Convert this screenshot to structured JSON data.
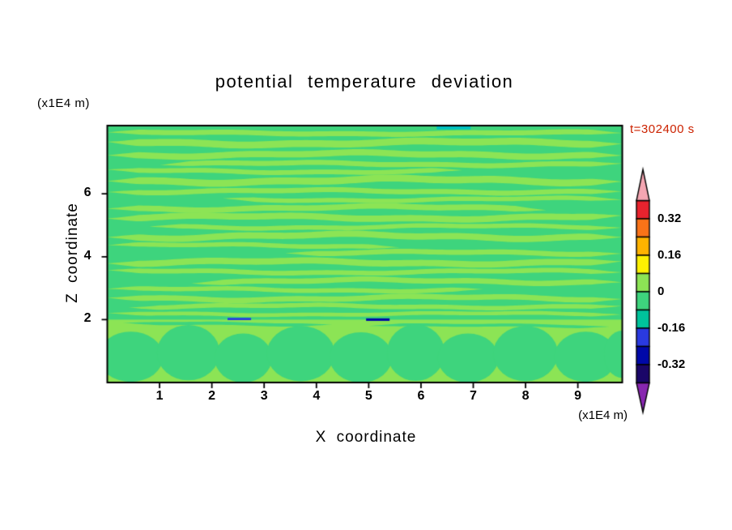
{
  "chart_data": {
    "type": "heatmap",
    "subtype": "filled-contour",
    "title": "potential temperature deviation",
    "xlabel": "X coordinate",
    "ylabel": "Z coordinate",
    "x_unit": "(x1E4 m)",
    "z_unit": "(x1E4 m)",
    "time_label": "t=302400 s",
    "time_color": "#cc2200",
    "frame_color": "#000000",
    "background_color": "#ffffff",
    "xlim": [
      0,
      9.85
    ],
    "zlim": [
      0,
      8.17
    ],
    "x_ticks": [
      1,
      2,
      3,
      4,
      5,
      6,
      7,
      8,
      9
    ],
    "z_ticks": [
      2,
      4,
      6
    ],
    "contour_interval": 0.08,
    "colorbar": {
      "labels": [
        "0.32",
        "0.16",
        "0",
        "-0.16",
        "-0.32"
      ],
      "levels": [
        0.4,
        0.32,
        0.24,
        0.16,
        0.08,
        0,
        -0.08,
        -0.16,
        -0.24,
        -0.32,
        -0.4
      ],
      "segment_colors": [
        "#e8232e",
        "#f97318",
        "#ffb300",
        "#fdf002",
        "#8ce455",
        "#3ed47d",
        "#00c39b",
        "#2a3ae0",
        "#0008a8",
        "#1a0668"
      ],
      "over_arrow_color": "#f4a6b2",
      "under_arrow_color": "#8826b0"
    },
    "field": {
      "background_color": "#3ed47d",
      "stripe_color": "#8ce455",
      "lower_band": {
        "z_top": 2.0
      },
      "stripes": [
        {
          "z": 7.93,
          "h": 0.16,
          "x0": 0,
          "x1": 9.85,
          "amp": 0.03,
          "ph": 0.5
        },
        {
          "z": 7.62,
          "h": 0.22,
          "x0": 0,
          "x1": 9.85,
          "amp": 0.05,
          "ph": 2.1
        },
        {
          "z": 7.25,
          "h": 0.2,
          "x0": 0,
          "x1": 9.85,
          "amp": 0.05,
          "ph": 3.8
        },
        {
          "z": 6.95,
          "h": 0.16,
          "x0": 1.0,
          "x1": 9.85,
          "amp": 0.04,
          "ph": 5.0
        },
        {
          "z": 6.72,
          "h": 0.15,
          "x0": 0,
          "x1": 6.8,
          "amp": 0.04,
          "ph": 1.3
        },
        {
          "z": 6.42,
          "h": 0.22,
          "x0": 0,
          "x1": 9.85,
          "amp": 0.06,
          "ph": 2.9
        },
        {
          "z": 6.08,
          "h": 0.16,
          "x0": 0,
          "x1": 9.85,
          "amp": 0.04,
          "ph": 4.6
        },
        {
          "z": 5.82,
          "h": 0.14,
          "x0": 2.2,
          "x1": 9.85,
          "amp": 0.04,
          "ph": 0.8
        },
        {
          "z": 5.55,
          "h": 0.18,
          "x0": 0,
          "x1": 8.4,
          "amp": 0.05,
          "ph": 3.3
        },
        {
          "z": 5.25,
          "h": 0.2,
          "x0": 0,
          "x1": 9.85,
          "amp": 0.05,
          "ph": 5.7
        },
        {
          "z": 4.95,
          "h": 0.14,
          "x0": 0.8,
          "x1": 9.85,
          "amp": 0.04,
          "ph": 1.9
        },
        {
          "z": 4.65,
          "h": 0.2,
          "x0": 0,
          "x1": 9.85,
          "amp": 0.06,
          "ph": 4.1
        },
        {
          "z": 4.35,
          "h": 0.14,
          "x0": 0,
          "x1": 5.6,
          "amp": 0.04,
          "ph": 0.2
        },
        {
          "z": 4.12,
          "h": 0.16,
          "x0": 3.4,
          "x1": 9.85,
          "amp": 0.04,
          "ph": 2.6
        },
        {
          "z": 3.82,
          "h": 0.2,
          "x0": 0,
          "x1": 9.85,
          "amp": 0.05,
          "ph": 5.2
        },
        {
          "z": 3.52,
          "h": 0.15,
          "x0": 0,
          "x1": 9.85,
          "amp": 0.04,
          "ph": 1.1
        },
        {
          "z": 3.22,
          "h": 0.17,
          "x0": 1.6,
          "x1": 9.85,
          "amp": 0.05,
          "ph": 3.6
        },
        {
          "z": 2.95,
          "h": 0.14,
          "x0": 0,
          "x1": 7.2,
          "amp": 0.04,
          "ph": 0.4
        },
        {
          "z": 2.68,
          "h": 0.17,
          "x0": 0,
          "x1": 9.85,
          "amp": 0.05,
          "ph": 2.4
        },
        {
          "z": 2.42,
          "h": 0.14,
          "x0": 0.4,
          "x1": 9.85,
          "amp": 0.04,
          "ph": 4.9
        },
        {
          "z": 2.18,
          "h": 0.12,
          "x0": 0,
          "x1": 9.85,
          "amp": 0.03,
          "ph": 1.7
        }
      ],
      "filaments": [
        {
          "z": 1.86,
          "h": 0.1,
          "x0": 0.3,
          "x1": 4.3,
          "amp": 0.03,
          "ph": 0.9
        },
        {
          "z": 1.8,
          "h": 0.09,
          "x0": 5.0,
          "x1": 9.6,
          "amp": 0.03,
          "ph": 2.2
        }
      ],
      "blobs": [
        {
          "x": 0.45,
          "z": 0.82,
          "rx": 0.62,
          "rz": 0.8
        },
        {
          "x": 1.55,
          "z": 0.95,
          "rx": 0.6,
          "rz": 0.88
        },
        {
          "x": 2.6,
          "z": 0.78,
          "rx": 0.55,
          "rz": 0.78
        },
        {
          "x": 3.7,
          "z": 0.92,
          "rx": 0.65,
          "rz": 0.88
        },
        {
          "x": 4.85,
          "z": 0.8,
          "rx": 0.6,
          "rz": 0.8
        },
        {
          "x": 5.9,
          "z": 0.95,
          "rx": 0.55,
          "rz": 0.9
        },
        {
          "x": 6.9,
          "z": 0.78,
          "rx": 0.58,
          "rz": 0.78
        },
        {
          "x": 8.0,
          "z": 0.92,
          "rx": 0.62,
          "rz": 0.88
        },
        {
          "x": 9.15,
          "z": 0.82,
          "rx": 0.6,
          "rz": 0.8
        },
        {
          "x": 9.85,
          "z": 0.9,
          "rx": 0.35,
          "rz": 0.75
        }
      ],
      "features": [
        {
          "x0": 2.3,
          "x1": 2.75,
          "z": 2.02,
          "h": 0.07,
          "color": "#2a3ae0"
        },
        {
          "x0": 4.95,
          "x1": 5.4,
          "z": 2.0,
          "h": 0.08,
          "color": "#0008a8"
        },
        {
          "x0": 6.3,
          "x1": 6.95,
          "z": 8.1,
          "h": 0.1,
          "color": "#00c2c2"
        }
      ]
    }
  }
}
